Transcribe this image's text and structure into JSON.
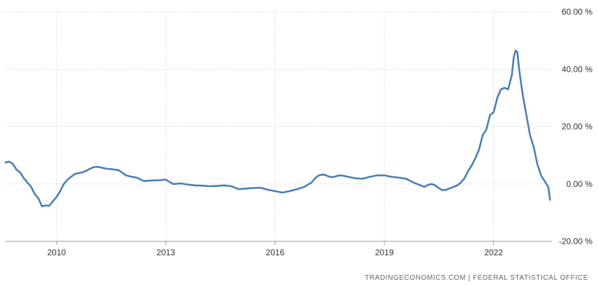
{
  "chart_data": {
    "type": "line",
    "title": "",
    "xlabel": "",
    "ylabel": "",
    "grid": true,
    "x_ticks": [
      "2010",
      "2013",
      "2016",
      "2019",
      "2022"
    ],
    "y_ticks": [
      "60.00 %",
      "40.00 %",
      "20.00 %",
      "0.00 %",
      "-20.00 %"
    ],
    "ylim": [
      -20,
      60
    ],
    "xlim": [
      2008.6,
      2023.6
    ],
    "y_axis_side": "right",
    "line_color": "#4a7fb5",
    "series": [
      {
        "name": "",
        "points": [
          [
            2008.6,
            7.5
          ],
          [
            2008.7,
            7.8
          ],
          [
            2008.8,
            7.0
          ],
          [
            2008.9,
            5.0
          ],
          [
            2009.0,
            4.0
          ],
          [
            2009.1,
            2.0
          ],
          [
            2009.2,
            0.5
          ],
          [
            2009.3,
            -1.0
          ],
          [
            2009.4,
            -3.5
          ],
          [
            2009.5,
            -5.0
          ],
          [
            2009.6,
            -7.8
          ],
          [
            2009.7,
            -7.5
          ],
          [
            2009.8,
            -7.6
          ],
          [
            2009.9,
            -6.0
          ],
          [
            2010.0,
            -4.5
          ],
          [
            2010.1,
            -2.5
          ],
          [
            2010.2,
            0.0
          ],
          [
            2010.3,
            1.5
          ],
          [
            2010.4,
            2.5
          ],
          [
            2010.5,
            3.5
          ],
          [
            2010.6,
            3.8
          ],
          [
            2010.7,
            4.0
          ],
          [
            2010.8,
            4.5
          ],
          [
            2010.9,
            5.2
          ],
          [
            2011.0,
            5.8
          ],
          [
            2011.1,
            6.0
          ],
          [
            2011.2,
            5.8
          ],
          [
            2011.3,
            5.5
          ],
          [
            2011.4,
            5.3
          ],
          [
            2011.5,
            5.2
          ],
          [
            2011.6,
            5.0
          ],
          [
            2011.7,
            4.8
          ],
          [
            2011.8,
            4.0
          ],
          [
            2011.9,
            3.0
          ],
          [
            2012.0,
            2.7
          ],
          [
            2012.2,
            2.2
          ],
          [
            2012.4,
            1.0
          ],
          [
            2012.6,
            1.2
          ],
          [
            2012.8,
            1.3
          ],
          [
            2013.0,
            1.5
          ],
          [
            2013.2,
            0.0
          ],
          [
            2013.4,
            0.2
          ],
          [
            2013.6,
            -0.2
          ],
          [
            2013.8,
            -0.5
          ],
          [
            2014.0,
            -0.6
          ],
          [
            2014.2,
            -0.8
          ],
          [
            2014.4,
            -0.7
          ],
          [
            2014.6,
            -0.5
          ],
          [
            2014.8,
            -0.8
          ],
          [
            2015.0,
            -1.8
          ],
          [
            2015.2,
            -1.6
          ],
          [
            2015.4,
            -1.4
          ],
          [
            2015.6,
            -1.3
          ],
          [
            2015.8,
            -2.0
          ],
          [
            2016.0,
            -2.5
          ],
          [
            2016.2,
            -3.0
          ],
          [
            2016.4,
            -2.5
          ],
          [
            2016.6,
            -1.8
          ],
          [
            2016.8,
            -1.0
          ],
          [
            2017.0,
            0.5
          ],
          [
            2017.1,
            2.0
          ],
          [
            2017.2,
            3.0
          ],
          [
            2017.3,
            3.3
          ],
          [
            2017.4,
            3.0
          ],
          [
            2017.5,
            2.5
          ],
          [
            2017.6,
            2.4
          ],
          [
            2017.7,
            2.8
          ],
          [
            2017.8,
            3.0
          ],
          [
            2017.9,
            2.8
          ],
          [
            2018.0,
            2.5
          ],
          [
            2018.2,
            2.0
          ],
          [
            2018.4,
            1.8
          ],
          [
            2018.6,
            2.5
          ],
          [
            2018.8,
            3.0
          ],
          [
            2019.0,
            3.0
          ],
          [
            2019.2,
            2.5
          ],
          [
            2019.4,
            2.2
          ],
          [
            2019.6,
            1.8
          ],
          [
            2019.8,
            0.5
          ],
          [
            2020.0,
            -0.5
          ],
          [
            2020.1,
            -1.0
          ],
          [
            2020.2,
            -0.3
          ],
          [
            2020.3,
            0.0
          ],
          [
            2020.4,
            -0.5
          ],
          [
            2020.5,
            -1.5
          ],
          [
            2020.6,
            -2.2
          ],
          [
            2020.7,
            -2.0
          ],
          [
            2020.8,
            -1.5
          ],
          [
            2020.9,
            -1.0
          ],
          [
            2021.0,
            -0.5
          ],
          [
            2021.1,
            0.5
          ],
          [
            2021.2,
            2.0
          ],
          [
            2021.3,
            4.5
          ],
          [
            2021.4,
            6.5
          ],
          [
            2021.5,
            9.0
          ],
          [
            2021.6,
            12.0
          ],
          [
            2021.7,
            17.0
          ],
          [
            2021.8,
            19.0
          ],
          [
            2021.9,
            24.0
          ],
          [
            2022.0,
            25.0
          ],
          [
            2022.1,
            30.0
          ],
          [
            2022.2,
            33.0
          ],
          [
            2022.3,
            33.5
          ],
          [
            2022.4,
            33.0
          ],
          [
            2022.5,
            38.0
          ],
          [
            2022.55,
            44.0
          ],
          [
            2022.6,
            46.5
          ],
          [
            2022.65,
            46.0
          ],
          [
            2022.7,
            40.0
          ],
          [
            2022.8,
            31.0
          ],
          [
            2022.9,
            24.0
          ],
          [
            2023.0,
            17.0
          ],
          [
            2023.1,
            13.0
          ],
          [
            2023.2,
            7.0
          ],
          [
            2023.3,
            3.0
          ],
          [
            2023.4,
            1.0
          ],
          [
            2023.5,
            -1.0
          ],
          [
            2023.55,
            -5.5
          ]
        ]
      }
    ]
  },
  "source_text": "TRADINGECONOMICS.COM  |  FEDERAL STATISTICAL OFFICE"
}
